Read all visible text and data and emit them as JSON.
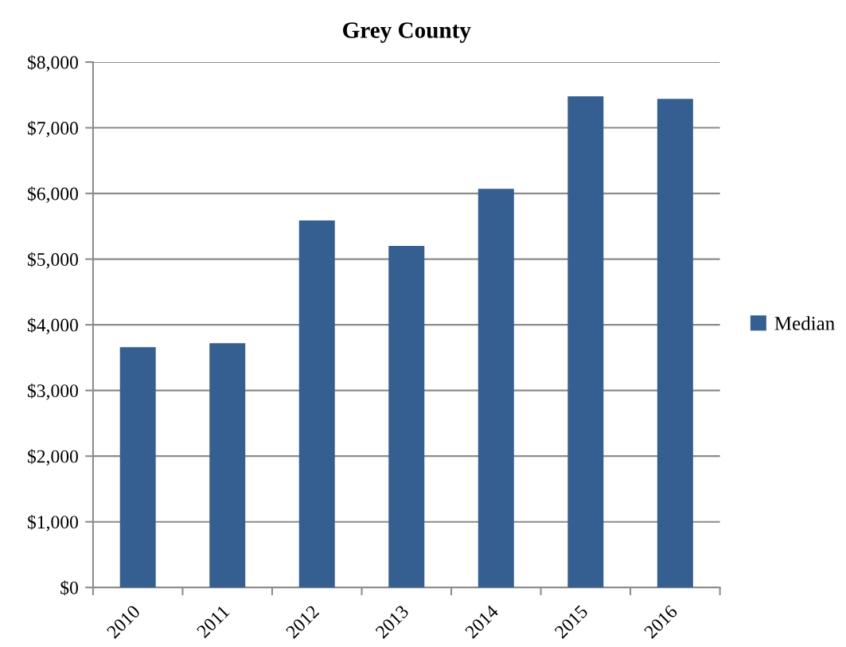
{
  "chart_data": {
    "type": "bar",
    "title": "Grey County",
    "categories": [
      "2010",
      "2011",
      "2012",
      "2013",
      "2014",
      "2015",
      "2016"
    ],
    "series": [
      {
        "name": "Median",
        "color": "#365f91",
        "values": [
          3660,
          3720,
          5590,
          5200,
          6070,
          7480,
          7440
        ]
      }
    ],
    "ylim": [
      0,
      8000
    ],
    "yticks": [
      {
        "value": 0,
        "label": "$0"
      },
      {
        "value": 1000,
        "label": "$1,000"
      },
      {
        "value": 2000,
        "label": "$2,000"
      },
      {
        "value": 3000,
        "label": "$3,000"
      },
      {
        "value": 4000,
        "label": "$4,000"
      },
      {
        "value": 5000,
        "label": "$5,000"
      },
      {
        "value": 6000,
        "label": "$6,000"
      },
      {
        "value": 7000,
        "label": "$7,000"
      },
      {
        "value": 8000,
        "label": "$8,000"
      }
    ],
    "grid": "y",
    "legend": "right"
  }
}
